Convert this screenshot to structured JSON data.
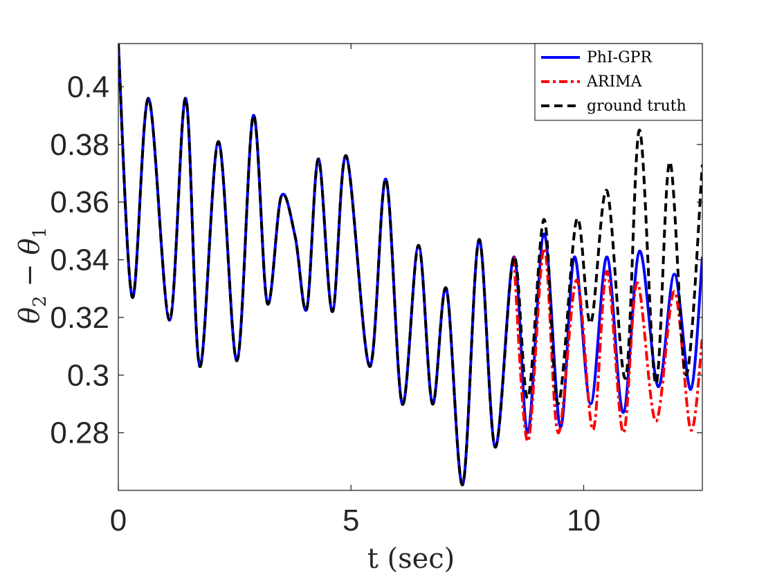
{
  "chart_data": {
    "type": "line",
    "title": "",
    "xlabel": "t (sec)",
    "ylabel": "θ2 − θ1",
    "xlim": [
      0,
      12.55
    ],
    "ylim": [
      0.26,
      0.415
    ],
    "x_ticks": [
      0,
      5,
      10
    ],
    "x_tick_labels": [
      "0",
      "5",
      "10"
    ],
    "y_ticks": [
      0.28,
      0.3,
      0.32,
      0.34,
      0.36,
      0.38,
      0.4
    ],
    "y_tick_labels": [
      "0.28",
      "0.3",
      "0.32",
      "0.34",
      "0.36",
      "0.38",
      "0.4"
    ],
    "grid": false,
    "legend_location": "top-right",
    "series": [
      {
        "name": "PhI-GPR",
        "color": "#0000ff",
        "style": "solid",
        "points": [
          [
            0,
            0.415
          ],
          [
            0.3,
            0.327
          ],
          [
            0.65,
            0.396
          ],
          [
            1.1,
            0.319
          ],
          [
            1.45,
            0.396
          ],
          [
            1.75,
            0.303
          ],
          [
            2.15,
            0.381
          ],
          [
            2.55,
            0.305
          ],
          [
            2.9,
            0.39
          ],
          [
            3.2,
            0.325
          ],
          [
            3.5,
            0.362
          ],
          [
            3.8,
            0.348
          ],
          [
            4.05,
            0.323
          ],
          [
            4.3,
            0.375
          ],
          [
            4.6,
            0.322
          ],
          [
            4.9,
            0.376
          ],
          [
            5.4,
            0.303
          ],
          [
            5.75,
            0.368
          ],
          [
            6.1,
            0.29
          ],
          [
            6.45,
            0.345
          ],
          [
            6.75,
            0.29
          ],
          [
            7.05,
            0.33
          ],
          [
            7.4,
            0.262
          ],
          [
            7.75,
            0.347
          ],
          [
            8.1,
            0.275
          ],
          [
            8.5,
            0.341
          ],
          [
            8.8,
            0.28
          ],
          [
            9.15,
            0.349
          ],
          [
            9.5,
            0.282
          ],
          [
            9.8,
            0.341
          ],
          [
            10.15,
            0.29
          ],
          [
            10.5,
            0.341
          ],
          [
            10.85,
            0.287
          ],
          [
            11.2,
            0.343
          ],
          [
            11.6,
            0.296
          ],
          [
            11.95,
            0.335
          ],
          [
            12.3,
            0.295
          ],
          [
            12.55,
            0.341
          ]
        ]
      },
      {
        "name": "ARIMA",
        "color": "#ff0000",
        "style": "dashdot",
        "points": [
          [
            8.5,
            0.341
          ],
          [
            8.8,
            0.277
          ],
          [
            9.15,
            0.344
          ],
          [
            9.45,
            0.28
          ],
          [
            9.85,
            0.333
          ],
          [
            10.2,
            0.281
          ],
          [
            10.5,
            0.336
          ],
          [
            10.85,
            0.28
          ],
          [
            11.15,
            0.332
          ],
          [
            11.55,
            0.284
          ],
          [
            11.95,
            0.329
          ],
          [
            12.3,
            0.281
          ],
          [
            12.55,
            0.313
          ]
        ]
      },
      {
        "name": "ground truth",
        "color": "#000000",
        "style": "dashed",
        "points": [
          [
            0,
            0.415
          ],
          [
            0.3,
            0.327
          ],
          [
            0.65,
            0.396
          ],
          [
            1.1,
            0.319
          ],
          [
            1.45,
            0.396
          ],
          [
            1.75,
            0.303
          ],
          [
            2.15,
            0.381
          ],
          [
            2.55,
            0.305
          ],
          [
            2.9,
            0.39
          ],
          [
            3.2,
            0.325
          ],
          [
            3.5,
            0.362
          ],
          [
            3.8,
            0.348
          ],
          [
            4.05,
            0.323
          ],
          [
            4.3,
            0.375
          ],
          [
            4.6,
            0.322
          ],
          [
            4.9,
            0.376
          ],
          [
            5.4,
            0.303
          ],
          [
            5.75,
            0.368
          ],
          [
            6.1,
            0.29
          ],
          [
            6.45,
            0.345
          ],
          [
            6.75,
            0.29
          ],
          [
            7.05,
            0.33
          ],
          [
            7.4,
            0.262
          ],
          [
            7.75,
            0.347
          ],
          [
            8.1,
            0.275
          ],
          [
            8.5,
            0.341
          ],
          [
            8.8,
            0.292
          ],
          [
            9.15,
            0.354
          ],
          [
            9.45,
            0.29
          ],
          [
            9.85,
            0.354
          ],
          [
            10.15,
            0.318
          ],
          [
            10.5,
            0.364
          ],
          [
            10.9,
            0.299
          ],
          [
            11.2,
            0.385
          ],
          [
            11.55,
            0.297
          ],
          [
            11.85,
            0.374
          ],
          [
            12.2,
            0.3
          ],
          [
            12.55,
            0.373
          ]
        ]
      }
    ]
  }
}
